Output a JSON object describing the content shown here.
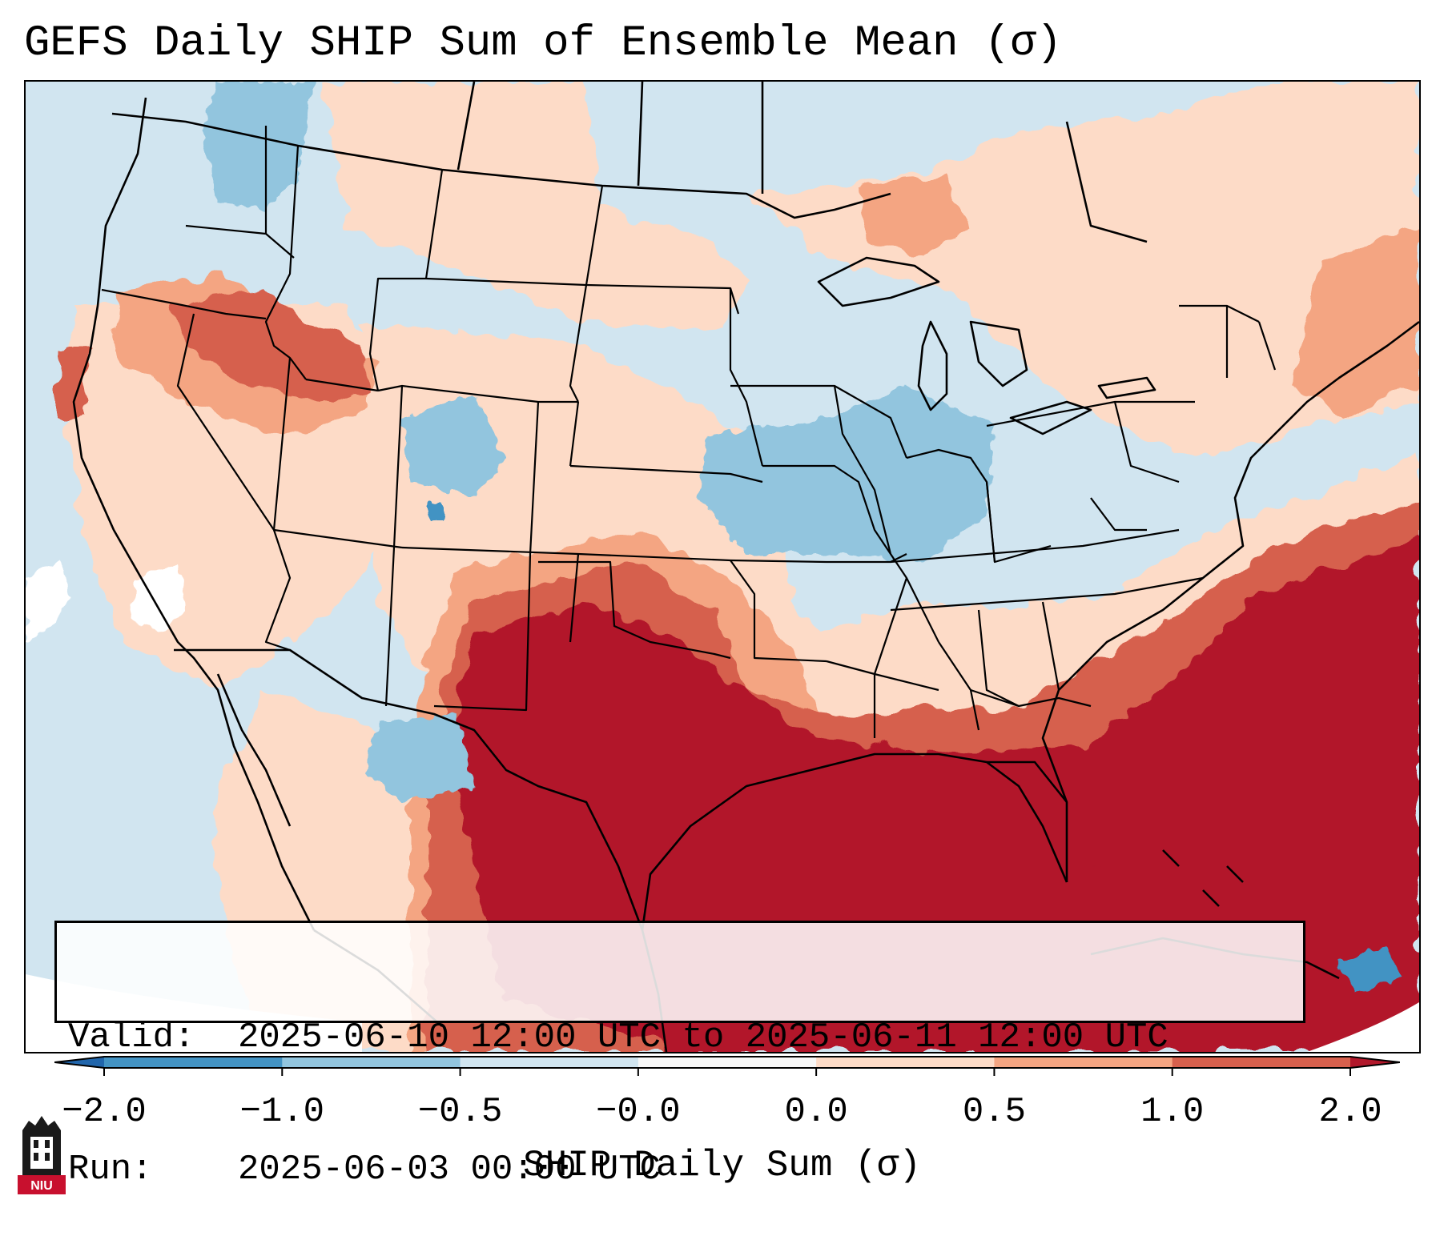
{
  "title": "GEFS Daily SHIP Sum of Ensemble Mean (σ)",
  "map": {
    "region": "Contiguous United States",
    "palette": {
      "below_-2": "#2166ac",
      "-2_to_-1": "#4393c3",
      "-1_to_-0.5": "#92c5de",
      "-0.5_to_0": "#d1e5f0",
      "0_to_0.5": "#fddbc7",
      "0.5_to_1": "#f4a582",
      "1_to_2": "#d6604d",
      "above_2": "#b2182b",
      "missing": "#ffffff"
    }
  },
  "info": {
    "valid_label": "Valid:",
    "valid_value": "2025-06-10 12:00 UTC to 2025-06-11 12:00 UTC",
    "run_label": "Run:",
    "run_value": "2025-06-03 00:00 UTC"
  },
  "colorbar": {
    "label": "SHIP Daily Sum (σ)",
    "ticks": [
      "−2.0",
      "−1.0",
      "−0.5",
      "−0.0",
      "0.0",
      "0.5",
      "1.0",
      "2.0"
    ],
    "colors": [
      "#2166ac",
      "#4393c3",
      "#92c5de",
      "#d1e5f0",
      "#f7f7f7",
      "#fddbc7",
      "#f4a582",
      "#d6604d",
      "#b2182b"
    ],
    "extend": "both"
  },
  "logo": {
    "text": "NIU"
  }
}
